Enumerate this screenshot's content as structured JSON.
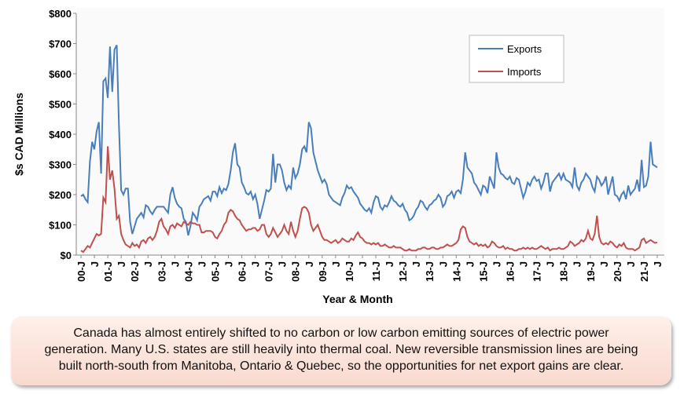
{
  "chart_data": {
    "type": "line",
    "y_label": "$s CAD Millions",
    "x_label": "Year & Month",
    "caption": "Canada has almost entirely shifted to no carbon or low carbon emitting sources of electric power generation. Many U.S. states are still heavily into thermal coal. New reversible transmission lines are being built north-south from Manitoba, Ontario & Quebec, so the opportunities for net export gains are clear.",
    "ylim": [
      0,
      800
    ],
    "yticks": [
      {
        "value": 0,
        "label": "$0"
      },
      {
        "value": 100,
        "label": "$100"
      },
      {
        "value": 200,
        "label": "$200"
      },
      {
        "value": 300,
        "label": "$300"
      },
      {
        "value": 400,
        "label": "$400"
      },
      {
        "value": 500,
        "label": "$500"
      },
      {
        "value": 600,
        "label": "$600"
      },
      {
        "value": 700,
        "label": "$700"
      },
      {
        "value": 800,
        "label": "$800"
      }
    ],
    "grid": false,
    "legend": "upper right",
    "categories": [
      "00-J",
      null,
      null,
      null,
      null,
      null,
      "J",
      null,
      null,
      null,
      null,
      null,
      "01-J",
      null,
      null,
      null,
      null,
      null,
      "J",
      null,
      null,
      null,
      null,
      null,
      "02-J",
      null,
      null,
      null,
      null,
      null,
      "J",
      null,
      null,
      null,
      null,
      null,
      "03-J",
      null,
      null,
      null,
      null,
      null,
      "J",
      null,
      null,
      null,
      null,
      null,
      "04-J",
      null,
      null,
      null,
      null,
      null,
      "J",
      null,
      null,
      null,
      null,
      null,
      "05-J",
      null,
      null,
      null,
      null,
      null,
      "J",
      null,
      null,
      null,
      null,
      null,
      "06-J",
      null,
      null,
      null,
      null,
      null,
      "J",
      null,
      null,
      null,
      null,
      null,
      "07-J",
      null,
      null,
      null,
      null,
      null,
      "J",
      null,
      null,
      null,
      null,
      null,
      "08-J",
      null,
      null,
      null,
      null,
      null,
      "J",
      null,
      null,
      null,
      null,
      null,
      "09-J",
      null,
      null,
      null,
      null,
      null,
      "J",
      null,
      null,
      null,
      null,
      null,
      "10-J",
      null,
      null,
      null,
      null,
      null,
      "J",
      null,
      null,
      null,
      null,
      null,
      "11-J",
      null,
      null,
      null,
      null,
      null,
      "J",
      null,
      null,
      null,
      null,
      null,
      "12-J",
      null,
      null,
      null,
      null,
      null,
      "J",
      null,
      null,
      null,
      null,
      null,
      "13-J",
      null,
      null,
      null,
      null,
      null,
      "J",
      null,
      null,
      null,
      null,
      null,
      "14-J",
      null,
      null,
      null,
      null,
      null,
      "J",
      null,
      null,
      null,
      null,
      null,
      "15-J",
      null,
      null,
      null,
      null,
      null,
      "J",
      null,
      null,
      null,
      null,
      null,
      "16-J",
      null,
      null,
      null,
      null,
      null,
      "J",
      null,
      null,
      null,
      null,
      null,
      "17-J",
      null,
      null,
      null,
      null,
      null,
      "J",
      null,
      null,
      null,
      null,
      null,
      "18-J",
      null,
      null,
      null,
      null,
      null,
      "J",
      null,
      null,
      null,
      null,
      null,
      "19-J",
      null,
      null,
      null,
      null,
      null,
      "J",
      null,
      null,
      null,
      null,
      null,
      "20-J",
      null,
      null,
      null,
      null,
      null,
      "J",
      null,
      null,
      null,
      null,
      null,
      "21-J",
      null,
      null,
      null,
      null,
      null,
      "J"
    ],
    "series": [
      {
        "name": "Exports",
        "color": "#4a7ebb",
        "values": [
          195,
          200,
          185,
          175,
          310,
          375,
          350,
          410,
          440,
          270,
          575,
          585,
          520,
          690,
          540,
          680,
          695,
          430,
          215,
          200,
          220,
          220,
          110,
          70,
          95,
          120,
          130,
          140,
          125,
          165,
          160,
          145,
          135,
          150,
          160,
          160,
          160,
          160,
          150,
          140,
          200,
          225,
          190,
          170,
          160,
          155,
          120,
          110,
          65,
          95,
          140,
          130,
          115,
          160,
          170,
          185,
          190,
          195,
          180,
          210,
          210,
          195,
          225,
          205,
          220,
          215,
          235,
          280,
          340,
          370,
          300,
          290,
          240,
          225,
          205,
          200,
          210,
          185,
          200,
          170,
          120,
          150,
          180,
          215,
          210,
          220,
          335,
          240,
          300,
          300,
          280,
          240,
          215,
          230,
          220,
          290,
          255,
          270,
          300,
          350,
          360,
          340,
          440,
          420,
          340,
          310,
          280,
          260,
          240,
          250,
          235,
          200,
          190,
          180,
          175,
          170,
          165,
          190,
          205,
          230,
          220,
          225,
          210,
          200,
          190,
          170,
          160,
          150,
          145,
          155,
          140,
          175,
          195,
          190,
          160,
          150,
          165,
          160,
          175,
          195,
          180,
          175,
          165,
          160,
          170,
          150,
          140,
          115,
          120,
          130,
          150,
          160,
          180,
          175,
          160,
          150,
          165,
          170,
          180,
          185,
          200,
          190,
          160,
          170,
          195,
          200,
          210,
          190,
          210,
          215,
          205,
          250,
          340,
          290,
          280,
          270,
          240,
          230,
          215,
          200,
          230,
          225,
          205,
          260,
          240,
          220,
          340,
          290,
          270,
          265,
          255,
          250,
          260,
          240,
          235,
          255,
          250,
          220,
          190,
          210,
          240,
          230,
          250,
          260,
          245,
          250,
          220,
          240,
          270,
          270,
          210,
          240,
          250,
          260,
          270,
          250,
          270,
          250,
          245,
          240,
          225,
          290,
          230,
          215,
          240,
          250,
          270,
          260,
          250,
          225,
          210,
          260,
          250,
          230,
          240,
          260,
          200,
          230,
          260,
          200,
          195,
          180,
          200,
          210,
          185,
          230,
          200,
          210,
          220,
          250,
          210,
          315,
          225,
          230,
          260,
          375,
          300,
          295,
          290
        ]
      },
      {
        "name": "Imports",
        "color": "#c0504d",
        "values": [
          15,
          10,
          20,
          30,
          25,
          40,
          55,
          70,
          65,
          70,
          190,
          175,
          360,
          250,
          280,
          220,
          120,
          130,
          70,
          50,
          35,
          30,
          25,
          40,
          30,
          35,
          25,
          45,
          50,
          40,
          55,
          60,
          50,
          60,
          80,
          110,
          120,
          95,
          85,
          70,
          95,
          100,
          90,
          105,
          100,
          95,
          110,
          105,
          100,
          110,
          105,
          105,
          100,
          100,
          75,
          75,
          80,
          80,
          80,
          75,
          60,
          55,
          70,
          80,
          100,
          110,
          140,
          150,
          145,
          130,
          120,
          115,
          100,
          90,
          80,
          85,
          85,
          90,
          90,
          80,
          85,
          100,
          100,
          70,
          60,
          70,
          90,
          75,
          60,
          70,
          80,
          100,
          80,
          70,
          110,
          80,
          60,
          80,
          120,
          155,
          160,
          155,
          140,
          100,
          80,
          90,
          100,
          80,
          60,
          50,
          50,
          45,
          40,
          45,
          50,
          40,
          45,
          55,
          50,
          45,
          45,
          55,
          50,
          65,
          75,
          60,
          55,
          45,
          40,
          40,
          35,
          40,
          35,
          40,
          30,
          30,
          35,
          30,
          25,
          25,
          30,
          25,
          25,
          25,
          20,
          15,
          15,
          20,
          15,
          15,
          15,
          20,
          20,
          25,
          25,
          20,
          20,
          25,
          25,
          20,
          20,
          25,
          25,
          30,
          35,
          30,
          30,
          35,
          40,
          50,
          85,
          95,
          90,
          60,
          45,
          40,
          35,
          40,
          30,
          35,
          30,
          35,
          25,
          30,
          45,
          40,
          30,
          25,
          25,
          30,
          20,
          25,
          20,
          20,
          15,
          15,
          20,
          20,
          25,
          20,
          25,
          20,
          25,
          20,
          20,
          25,
          30,
          25,
          20,
          25,
          15,
          20,
          20,
          20,
          25,
          20,
          20,
          25,
          30,
          45,
          40,
          30,
          35,
          40,
          50,
          45,
          55,
          80,
          55,
          50,
          70,
          130,
          60,
          40,
          35,
          40,
          35,
          45,
          40,
          30,
          25,
          35,
          30,
          40,
          25,
          20,
          20,
          20,
          15,
          20,
          25,
          50,
          55,
          40,
          45,
          50,
          45,
          40,
          42
        ]
      }
    ]
  }
}
